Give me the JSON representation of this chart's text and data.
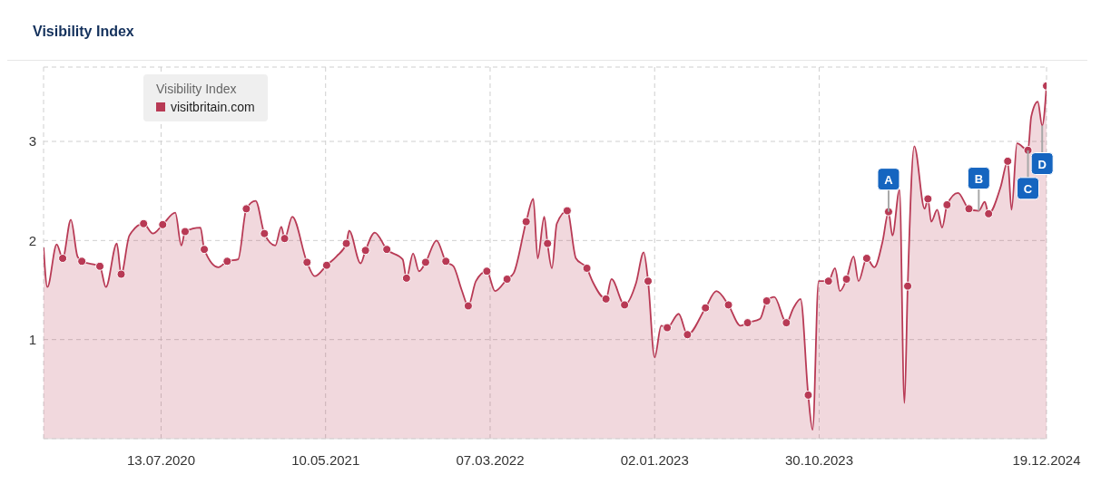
{
  "chart_data": {
    "type": "area",
    "title": "Visibility Index",
    "legend_title": "Visibility Index",
    "legend": "top left",
    "grid": true,
    "line_style": "solid",
    "xlim": [
      "2019-12-11",
      "2024-12-19"
    ],
    "xticks": [
      {
        "value": "2020-07-13",
        "label": "13.07.2020"
      },
      {
        "value": "2021-05-10",
        "label": "10.05.2021"
      },
      {
        "value": "2022-03-07",
        "label": "07.03.2022"
      },
      {
        "value": "2023-01-02",
        "label": "02.01.2023"
      },
      {
        "value": "2023-10-30",
        "label": "30.10.2023"
      },
      {
        "value": "2024-12-19",
        "label": "19.12.2024"
      }
    ],
    "ylim": [
      0,
      3.75
    ],
    "yticks": [
      1,
      2,
      3
    ],
    "annotations": [
      {
        "text": "A",
        "x": "2024-03-05",
        "y": 2.29
      },
      {
        "text": "B",
        "x": "2024-08-17",
        "y": 2.3
      },
      {
        "text": "C",
        "x": "2024-11-15",
        "y": 2.91
      },
      {
        "text": "D",
        "x": "2024-12-11",
        "y": 3.16
      }
    ],
    "series": [
      {
        "name": "visitbritain.com",
        "type": "area",
        "color": "#b83a55",
        "x": [
          "2019-12-11",
          "2019-12-18",
          "2020-01-04",
          "2020-01-15",
          "2020-01-30",
          "2020-02-11",
          "2020-02-19",
          "2020-03-23",
          "2020-04-03",
          "2020-04-23",
          "2020-05-01",
          "2020-05-16",
          "2020-06-11",
          "2020-06-28",
          "2020-07-16",
          "2020-08-08",
          "2020-08-19",
          "2020-08-26",
          "2020-09-23",
          "2020-09-30",
          "2020-10-26",
          "2020-11-11",
          "2020-12-01",
          "2020-12-16",
          "2021-01-02",
          "2021-01-18",
          "2021-02-07",
          "2021-02-18",
          "2021-02-24",
          "2021-03-10",
          "2021-04-06",
          "2021-04-20",
          "2021-05-12",
          "2021-05-30",
          "2021-06-17",
          "2021-06-22",
          "2021-07-13",
          "2021-07-22",
          "2021-08-08",
          "2021-08-30",
          "2021-09-28",
          "2021-10-05",
          "2021-10-17",
          "2021-10-28",
          "2021-11-09",
          "2021-11-29",
          "2021-12-16",
          "2021-12-30",
          "2022-01-14",
          "2022-01-26",
          "2022-02-09",
          "2022-03-01",
          "2022-03-16",
          "2022-04-07",
          "2022-04-19",
          "2022-05-12",
          "2022-05-25",
          "2022-06-02",
          "2022-06-14",
          "2022-06-20",
          "2022-06-28",
          "2022-07-07",
          "2022-07-26",
          "2022-08-11",
          "2022-08-31",
          "2022-09-11",
          "2022-10-05",
          "2022-10-15",
          "2022-11-08",
          "2022-11-29",
          "2022-12-13",
          "2022-12-21",
          "2023-01-02",
          "2023-01-14",
          "2023-01-25",
          "2023-02-15",
          "2023-03-03",
          "2023-04-05",
          "2023-04-25",
          "2023-05-17",
          "2023-06-08",
          "2023-06-21",
          "2023-07-14",
          "2023-07-26",
          "2023-08-09",
          "2023-08-31",
          "2023-09-13",
          "2023-09-26",
          "2023-10-10",
          "2023-10-18",
          "2023-10-29",
          "2023-11-16",
          "2023-11-28",
          "2023-12-07",
          "2023-12-19",
          "2024-01-01",
          "2024-01-10",
          "2024-01-25",
          "2024-02-08",
          "2024-02-23",
          "2024-03-05",
          "2024-03-12",
          "2024-03-25",
          "2024-04-03",
          "2024-04-09",
          "2024-04-21",
          "2024-05-10",
          "2024-05-16",
          "2024-05-22",
          "2024-06-02",
          "2024-06-11",
          "2024-06-20",
          "2024-07-10",
          "2024-07-30",
          "2024-08-17",
          "2024-08-28",
          "2024-09-04",
          "2024-09-26",
          "2024-10-09",
          "2024-10-16",
          "2024-10-26",
          "2024-11-15",
          "2024-11-21",
          "2024-12-03",
          "2024-12-11",
          "2024-12-19"
        ],
        "values": [
          1.93,
          1.53,
          1.96,
          1.82,
          2.21,
          1.84,
          1.79,
          1.74,
          1.53,
          1.97,
          1.66,
          2.05,
          2.17,
          2.07,
          2.16,
          2.28,
          1.95,
          2.09,
          2.13,
          1.91,
          1.73,
          1.79,
          1.81,
          2.32,
          2.4,
          2.07,
          1.95,
          2.14,
          2.02,
          2.24,
          1.78,
          1.64,
          1.75,
          1.84,
          1.97,
          2.1,
          1.77,
          1.9,
          2.08,
          1.91,
          1.81,
          1.62,
          1.87,
          1.69,
          1.78,
          2.0,
          1.79,
          1.74,
          1.5,
          1.34,
          1.59,
          1.69,
          1.49,
          1.61,
          1.67,
          2.19,
          2.42,
          1.82,
          2.24,
          1.97,
          1.72,
          2.17,
          2.3,
          1.82,
          1.72,
          1.58,
          1.41,
          1.61,
          1.35,
          1.57,
          1.88,
          1.59,
          0.82,
          1.14,
          1.12,
          1.26,
          1.05,
          1.32,
          1.49,
          1.35,
          1.14,
          1.17,
          1.21,
          1.39,
          1.43,
          1.17,
          1.32,
          1.41,
          0.44,
          0.09,
          1.59,
          1.59,
          1.72,
          1.49,
          1.61,
          1.84,
          1.59,
          1.82,
          1.73,
          1.99,
          2.29,
          2.05,
          2.51,
          0.36,
          1.54,
          2.95,
          2.32,
          2.42,
          2.19,
          2.31,
          2.13,
          2.36,
          2.48,
          2.32,
          2.3,
          2.39,
          2.27,
          2.54,
          2.8,
          2.31,
          2.98,
          2.91,
          3.25,
          3.4,
          3.16,
          3.56
        ]
      },
      {
        "type": "scatter",
        "color": "#b83a55",
        "marker": "circle",
        "x": [
          "2020-01-15",
          "2020-02-19",
          "2020-03-23",
          "2020-05-01",
          "2020-06-11",
          "2020-07-16",
          "2020-08-26",
          "2020-09-30",
          "2020-11-11",
          "2020-12-16",
          "2021-01-18",
          "2021-02-24",
          "2021-04-06",
          "2021-05-12",
          "2021-06-17",
          "2021-07-22",
          "2021-08-30",
          "2021-10-05",
          "2021-11-09",
          "2021-12-16",
          "2022-01-26",
          "2022-03-01",
          "2022-04-07",
          "2022-05-12",
          "2022-06-20",
          "2022-07-26",
          "2022-08-31",
          "2022-10-05",
          "2022-11-08",
          "2022-12-21",
          "2023-01-25",
          "2023-03-03",
          "2023-04-05",
          "2023-05-17",
          "2023-06-21",
          "2023-07-26",
          "2023-08-31",
          "2023-10-10",
          "2023-11-16",
          "2023-12-19",
          "2024-01-25",
          "2024-03-05",
          "2024-04-09",
          "2024-05-16",
          "2024-06-20",
          "2024-07-30",
          "2024-09-04",
          "2024-10-09",
          "2024-11-15",
          "2024-12-19"
        ],
        "values": [
          1.82,
          1.79,
          1.74,
          1.66,
          2.17,
          2.16,
          2.09,
          1.91,
          1.79,
          2.32,
          2.07,
          2.02,
          1.78,
          1.75,
          1.97,
          1.9,
          1.91,
          1.62,
          1.78,
          1.79,
          1.34,
          1.69,
          1.61,
          2.19,
          1.97,
          2.3,
          1.72,
          1.41,
          1.35,
          1.59,
          1.12,
          1.05,
          1.32,
          1.35,
          1.17,
          1.39,
          1.17,
          0.44,
          1.59,
          1.61,
          1.82,
          2.29,
          1.54,
          2.42,
          2.36,
          2.32,
          2.27,
          2.8,
          2.91,
          3.56
        ]
      }
    ]
  }
}
